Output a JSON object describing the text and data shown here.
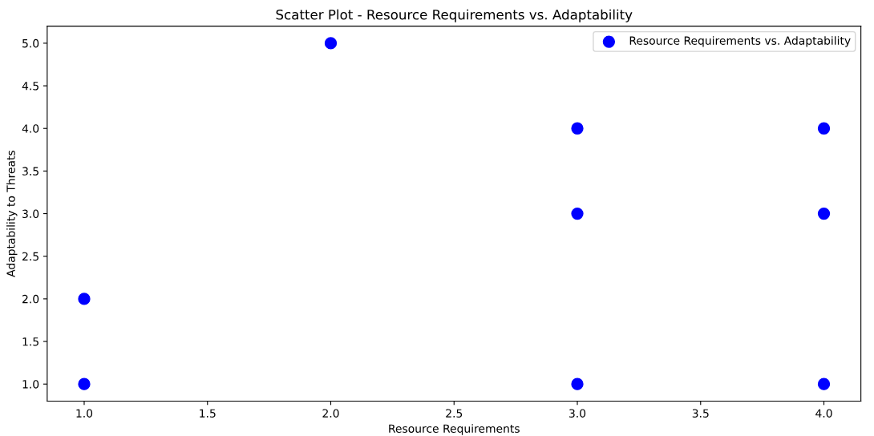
{
  "chart_data": {
    "type": "scatter",
    "title": "Scatter Plot - Resource Requirements vs. Adaptability",
    "xlabel": "Resource Requirements",
    "ylabel": "Adaptability to Threats",
    "series": [
      {
        "name": "Resource Requirements vs. Adaptability",
        "color": "#0000ff",
        "x": [
          1,
          1,
          2,
          3,
          3,
          3,
          4,
          4,
          4
        ],
        "values": [
          2,
          1,
          5,
          4,
          3,
          1,
          4,
          3,
          1
        ]
      }
    ],
    "xlim": [
      0.85,
      4.15
    ],
    "xticks": [
      {
        "value": 1,
        "label": "1.0"
      },
      {
        "value": 1.5,
        "label": "1.5"
      },
      {
        "value": 2,
        "label": "2.0"
      },
      {
        "value": 2.5,
        "label": "2.5"
      },
      {
        "value": 3,
        "label": "3.0"
      },
      {
        "value": 3.5,
        "label": "3.5"
      },
      {
        "value": 4,
        "label": "4.0"
      }
    ],
    "ylim": [
      0.8,
      5.2
    ],
    "yticks": [
      {
        "value": 1,
        "label": "1.0"
      },
      {
        "value": 1.5,
        "label": "1.5"
      },
      {
        "value": 2,
        "label": "2.0"
      },
      {
        "value": 2.5,
        "label": "2.5"
      },
      {
        "value": 3,
        "label": "3.0"
      },
      {
        "value": 3.5,
        "label": "3.5"
      },
      {
        "value": 4,
        "label": "4.0"
      },
      {
        "value": 4.5,
        "label": "4.5"
      },
      {
        "value": 5,
        "label": "5.0"
      }
    ],
    "marker": "circle",
    "legend": "top right",
    "grid": false
  }
}
